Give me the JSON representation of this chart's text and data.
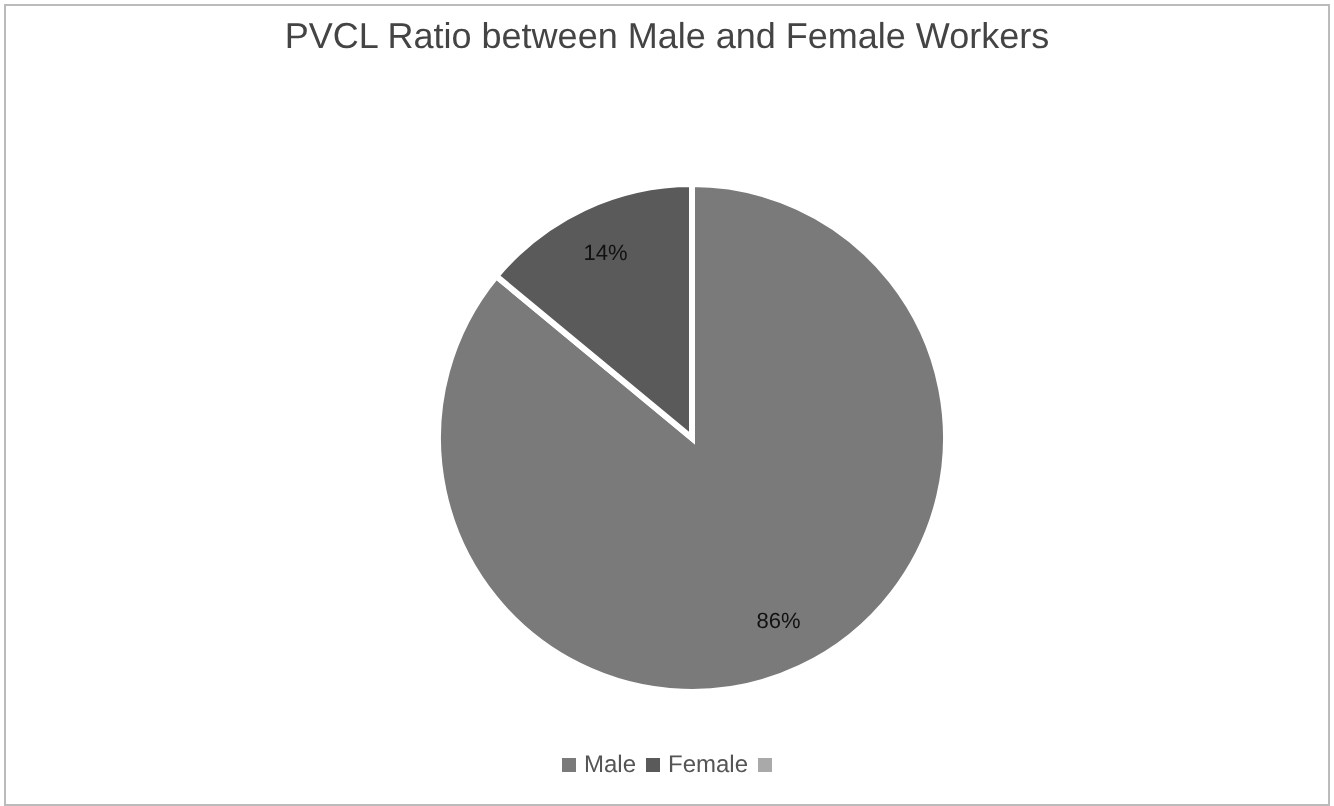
{
  "chart_data": {
    "type": "pie",
    "title": "PVCL Ratio between Male and Female Workers",
    "categories": [
      "Male",
      "Female"
    ],
    "values": [
      86,
      14
    ],
    "colors": [
      "#7a7a7a",
      "#5a5a5a"
    ],
    "value_labels": [
      "86%",
      "14%"
    ],
    "legend": "bottom"
  }
}
